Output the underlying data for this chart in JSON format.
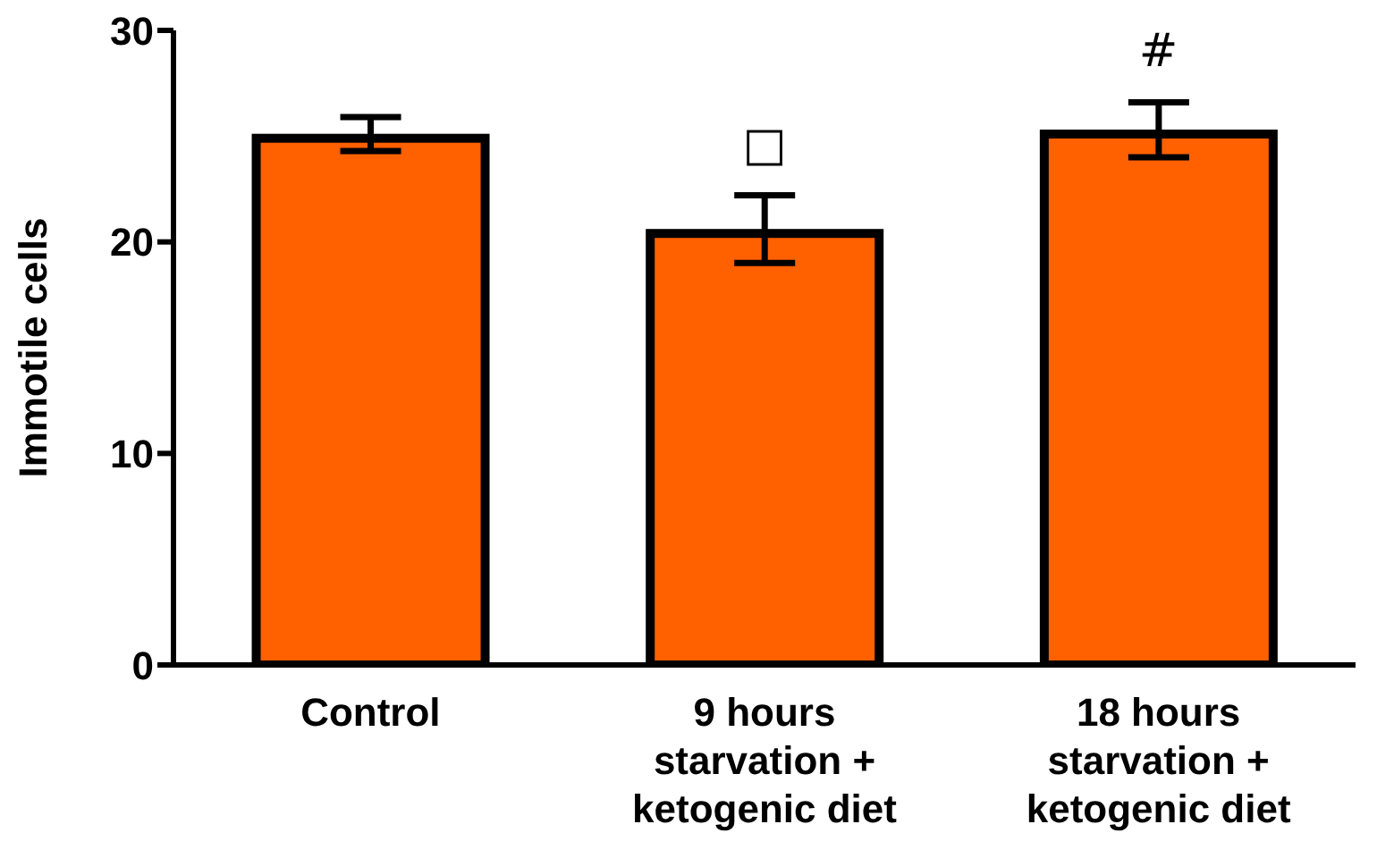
{
  "chart_data": {
    "type": "bar",
    "ylabel": "Immotile cells",
    "categories": [
      "Control",
      "9 hours starvation + ketogenic diet",
      "18 hours starvation + ketogenic diet"
    ],
    "values": [
      24.9,
      20.4,
      25.1
    ],
    "errors": [
      [
        24.3,
        25.9
      ],
      [
        19.0,
        22.2
      ],
      [
        24.0,
        26.6
      ]
    ],
    "color": "#ff6000",
    "ylim": [
      0,
      30
    ],
    "yticks": [
      0,
      10,
      20,
      30
    ],
    "grid": false,
    "legend": false,
    "annotations": [
      "□",
      "#"
    ]
  }
}
